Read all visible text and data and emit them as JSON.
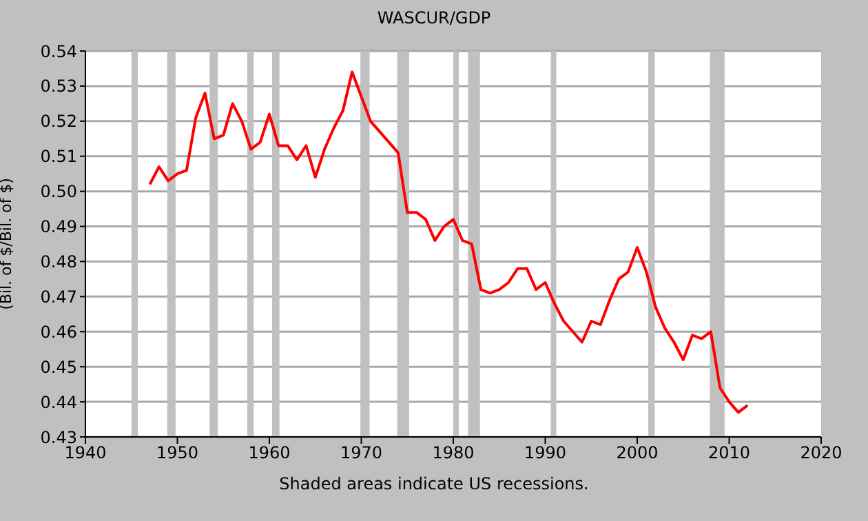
{
  "chart_data": {
    "type": "line",
    "title": "WASCUR/GDP",
    "ylabel": "(Bil. of $/Bil. of $)",
    "annotations": [
      "Shaded areas indicate US recessions."
    ],
    "x": [
      1947,
      1948,
      1949,
      1950,
      1951,
      1952,
      1953,
      1954,
      1955,
      1956,
      1957,
      1958,
      1959,
      1960,
      1961,
      1962,
      1963,
      1964,
      1965,
      1966,
      1967,
      1968,
      1969,
      1970,
      1971,
      1972,
      1973,
      1974,
      1975,
      1976,
      1977,
      1978,
      1979,
      1980,
      1981,
      1982,
      1983,
      1984,
      1985,
      1986,
      1987,
      1988,
      1989,
      1990,
      1991,
      1992,
      1993,
      1994,
      1995,
      1996,
      1997,
      1998,
      1999,
      2000,
      2001,
      2002,
      2003,
      2004,
      2005,
      2006,
      2007,
      2008,
      2009,
      2010,
      2011,
      2012
    ],
    "series": [
      {
        "color": "#ff0000",
        "values": [
          0.502,
          0.507,
          0.503,
          0.505,
          0.506,
          0.521,
          0.528,
          0.515,
          0.516,
          0.525,
          0.52,
          0.512,
          0.514,
          0.522,
          0.513,
          0.513,
          0.509,
          0.513,
          0.504,
          0.512,
          0.518,
          0.523,
          0.534,
          0.527,
          0.52,
          0.517,
          0.514,
          0.511,
          0.494,
          0.494,
          0.492,
          0.486,
          0.49,
          0.492,
          0.486,
          0.485,
          0.472,
          0.471,
          0.472,
          0.474,
          0.478,
          0.478,
          0.472,
          0.474,
          0.468,
          0.463,
          0.46,
          0.457,
          0.463,
          0.462,
          0.469,
          0.475,
          0.477,
          0.484,
          0.477,
          0.467,
          0.461,
          0.457,
          0.452,
          0.459,
          0.458,
          0.46,
          0.444,
          0.44,
          0.437,
          0.439
        ]
      }
    ],
    "xlim": [
      1940,
      2020
    ],
    "xticks": [
      1940,
      1950,
      1960,
      1970,
      1980,
      1990,
      2000,
      2010,
      2020
    ],
    "ylim": [
      0.43,
      0.54
    ],
    "yticks": [
      0.43,
      0.44,
      0.45,
      0.46,
      0.47,
      0.48,
      0.49,
      {
        "value": 0.5,
        "label": "0.50"
      },
      0.51,
      0.52,
      0.53,
      0.54
    ],
    "bands": [
      {
        "axis": "x",
        "from": 1945.0,
        "to": 1945.7,
        "color": "#c0c0c0"
      },
      {
        "axis": "x",
        "from": 1948.9,
        "to": 1949.8,
        "color": "#c0c0c0"
      },
      {
        "axis": "x",
        "from": 1953.5,
        "to": 1954.4,
        "color": "#c0c0c0"
      },
      {
        "axis": "x",
        "from": 1957.6,
        "to": 1958.3,
        "color": "#c0c0c0"
      },
      {
        "axis": "x",
        "from": 1960.3,
        "to": 1961.1,
        "color": "#c0c0c0"
      },
      {
        "axis": "x",
        "from": 1969.9,
        "to": 1970.9,
        "color": "#c0c0c0"
      },
      {
        "axis": "x",
        "from": 1973.9,
        "to": 1975.2,
        "color": "#c0c0c0"
      },
      {
        "axis": "x",
        "from": 1980.0,
        "to": 1980.6,
        "color": "#c0c0c0"
      },
      {
        "axis": "x",
        "from": 1981.6,
        "to": 1982.9,
        "color": "#c0c0c0"
      },
      {
        "axis": "x",
        "from": 1990.6,
        "to": 1991.2,
        "color": "#c0c0c0"
      },
      {
        "axis": "x",
        "from": 2001.2,
        "to": 2001.9,
        "color": "#c0c0c0"
      },
      {
        "axis": "x",
        "from": 2007.9,
        "to": 2009.5,
        "color": "#c0c0c0"
      }
    ],
    "grid": "y",
    "marker": "none",
    "line_style": "solid"
  }
}
